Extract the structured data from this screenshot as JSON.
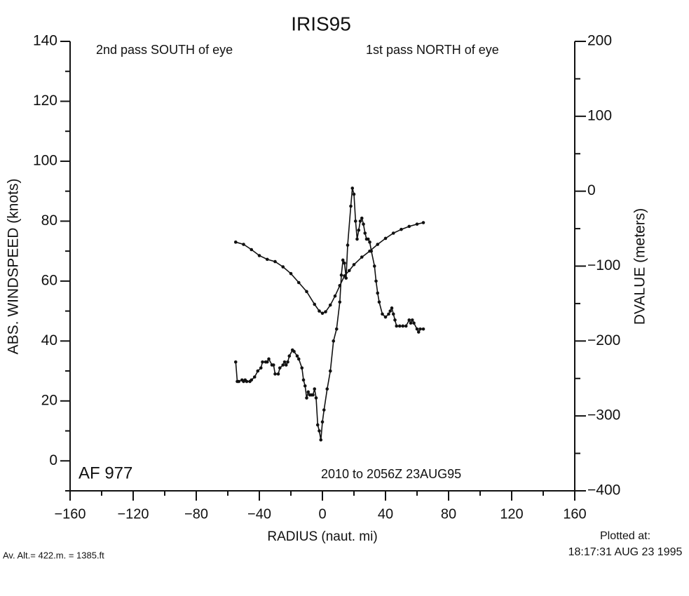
{
  "chart_data": {
    "type": "line",
    "title": "IRIS95",
    "annotations": [
      "2nd pass SOUTH of eye",
      "1st pass NORTH of eye",
      "AF 977",
      "2010 to 2056Z 23AUG95"
    ],
    "footnotes": [
      "Av. Alt.=  422.m. =  1385.ft",
      "Plotted at:",
      "18:17:31 AUG 23 1995"
    ],
    "xlabel": "RADIUS (naut. mi)",
    "ylabel": "ABS. WINDSPEED (knots)",
    "y2label": "DVALUE (meters)",
    "xlim": [
      -160,
      160
    ],
    "xticks": [
      {
        "value": -160,
        "label": "−160"
      },
      {
        "value": -120,
        "label": "−120"
      },
      {
        "value": -80,
        "label": "−80"
      },
      {
        "value": -40,
        "label": "−40"
      },
      0,
      40,
      80,
      120,
      160
    ],
    "xminorticks": [
      -140,
      -100,
      -60,
      -20,
      20,
      60,
      100,
      140
    ],
    "ylim": [
      -10,
      140
    ],
    "yticks": [
      0,
      20,
      40,
      60,
      80,
      100,
      120,
      140
    ],
    "yminorticks": [
      -10,
      10,
      30,
      50,
      70,
      90,
      110,
      130
    ],
    "y2lim": [
      -400,
      200
    ],
    "y2ticks": [
      {
        "value": -400,
        "label": "−400"
      },
      {
        "value": -300,
        "label": "−300"
      },
      {
        "value": -200,
        "label": "−200"
      },
      {
        "value": -100,
        "label": "−100"
      },
      0,
      100,
      200
    ],
    "y2minorticks": [
      -350,
      -250,
      -150,
      -50,
      50,
      150
    ],
    "color": "#111111",
    "series": [
      {
        "x": [
          -55,
          -54,
          -53,
          -51,
          -50,
          -49,
          -48,
          -46,
          -45,
          -43,
          -41,
          -39,
          -38,
          -36,
          -35,
          -34,
          -32,
          -31,
          -30,
          -28,
          -27,
          -25,
          -24,
          -23,
          -22,
          -21,
          -19,
          -18,
          -16,
          -15,
          -13,
          -12,
          -11,
          -10,
          -9,
          -8,
          -7,
          -6,
          -5,
          -4,
          -3,
          -2,
          -1,
          0,
          1,
          3,
          5,
          7,
          9,
          11,
          12,
          13,
          14,
          15,
          16,
          18,
          19,
          20,
          21,
          22,
          23,
          24,
          25,
          26,
          27,
          28,
          29,
          30,
          31,
          33,
          34,
          35,
          36,
          38,
          40,
          42,
          43,
          44,
          45,
          46,
          47,
          49,
          51,
          53,
          55,
          56,
          57,
          58,
          60,
          61,
          62,
          64
        ],
        "values": [
          33,
          26.5,
          26.5,
          27,
          26.5,
          27,
          26.5,
          26.5,
          27,
          28,
          30,
          31,
          33,
          33,
          33,
          34,
          32,
          32,
          29,
          29,
          31,
          32,
          33,
          32,
          33,
          35,
          37,
          36.5,
          35,
          34,
          31,
          27,
          25,
          21,
          23,
          22,
          22,
          22,
          24,
          21,
          12,
          10,
          7,
          13,
          17,
          24,
          30,
          40,
          44,
          53,
          62,
          67,
          66,
          61,
          72,
          85,
          91,
          89,
          80,
          74,
          77,
          80,
          81,
          79,
          76,
          74,
          74,
          73,
          70,
          65,
          60,
          56,
          53,
          49,
          48,
          49,
          50,
          51,
          49,
          47,
          45,
          45,
          45,
          45,
          47,
          46,
          47,
          46,
          44,
          43,
          44,
          44
        ]
      },
      {
        "axis": "y2",
        "x": [
          -55,
          -50,
          -45,
          -40,
          -35,
          -30,
          -25,
          -20,
          -15,
          -10,
          -5,
          -2,
          0,
          2,
          5,
          8,
          11,
          14,
          17,
          20,
          25,
          30,
          35,
          40,
          45,
          50,
          55,
          60,
          64
        ],
        "values": [
          -68,
          -71,
          -78,
          -86,
          -91,
          -94,
          -101,
          -110,
          -122,
          -134,
          -151,
          -160,
          -163,
          -161,
          -152,
          -140,
          -126,
          -113,
          -106,
          -98,
          -88,
          -80,
          -71,
          -63,
          -56,
          -51,
          -47,
          -44,
          -42
        ]
      }
    ]
  }
}
